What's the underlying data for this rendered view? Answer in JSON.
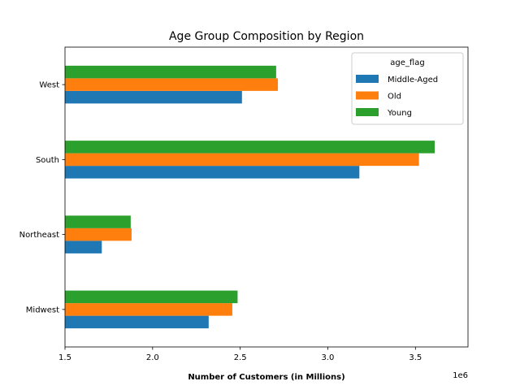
{
  "chart_data": {
    "type": "bar",
    "orientation": "horizontal",
    "title": "Age Group Composition by Region",
    "xlabel": "Number of Customers (in Millions)",
    "ylabel": "",
    "x_offset_label": "1e6",
    "xlim": [
      1500000,
      3800000
    ],
    "xticks": [
      1500000,
      2000000,
      2500000,
      3000000,
      3500000
    ],
    "xtick_labels": [
      "1.5",
      "2.0",
      "2.5",
      "3.0",
      "3.5"
    ],
    "categories": [
      "Midwest",
      "Northeast",
      "South",
      "West"
    ],
    "series": [
      {
        "name": "Middle-Aged",
        "color": "#1f77b4",
        "values": [
          2320000,
          1710000,
          3180000,
          2510000
        ]
      },
      {
        "name": "Old",
        "color": "#ff7f0e",
        "values": [
          2455000,
          1880000,
          3520000,
          2715000
        ]
      },
      {
        "name": "Young",
        "color": "#2ca02c",
        "values": [
          2485000,
          1875000,
          3610000,
          2705000
        ]
      }
    ],
    "legend": {
      "title": "age_flag",
      "position": "top-right"
    },
    "grid": false
  }
}
